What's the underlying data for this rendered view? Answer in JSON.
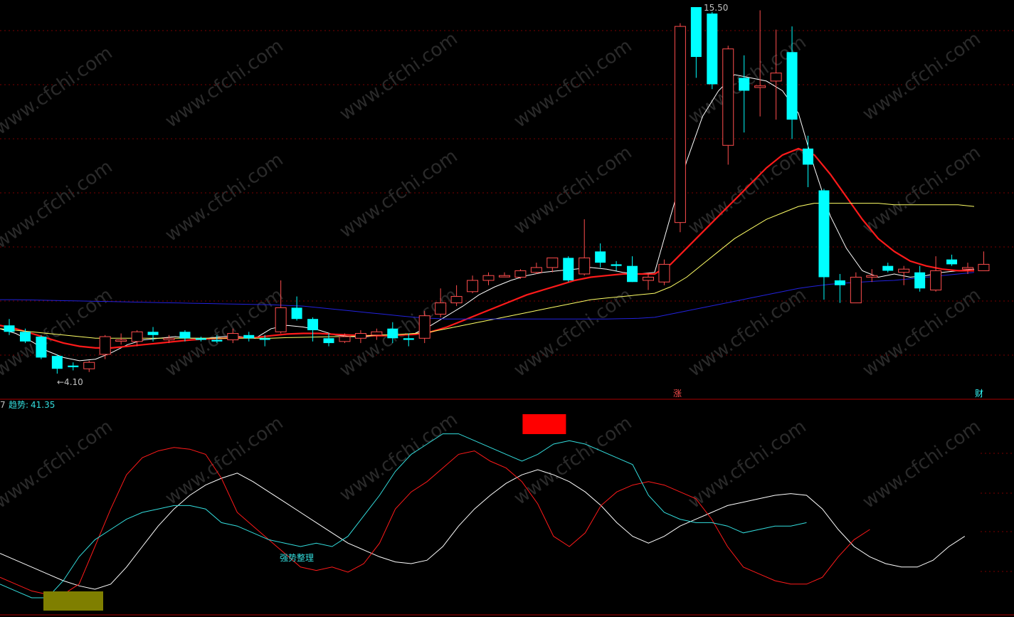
{
  "watermark": "www.cfchi.com",
  "main_panel": {
    "high_label": "15.50",
    "low_label": "←4.10",
    "markers": [
      {
        "text": "涨",
        "color": "#ff4d4d"
      },
      {
        "text": "财",
        "color": "#33ffff"
      }
    ]
  },
  "indicator_panel": {
    "title_prefix": "7",
    "title_label": "趋势:",
    "title_value": "41.35",
    "note": "强势整理"
  },
  "colors": {
    "up_candle": "#ff4d4d",
    "down_candle": "#00ffff",
    "ma_white": "#ffffff",
    "ma_red": "#ff1a1a",
    "ma_yellow": "#ffff66",
    "ma_blue": "#2222dd",
    "trend_cyan": "#33dddd",
    "grid": "#7a0000"
  },
  "chart_data": [
    {
      "type": "candlestick",
      "candles": [
        {
          "o": 5.6,
          "h": 5.8,
          "l": 5.3,
          "c": 5.4
        },
        {
          "o": 5.4,
          "h": 5.5,
          "l": 5.05,
          "c": 5.1
        },
        {
          "o": 5.25,
          "h": 5.3,
          "l": 4.55,
          "c": 4.6
        },
        {
          "o": 4.65,
          "h": 4.7,
          "l": 4.1,
          "c": 4.25
        },
        {
          "o": 4.35,
          "h": 4.45,
          "l": 4.2,
          "c": 4.3
        },
        {
          "o": 4.25,
          "h": 4.5,
          "l": 4.15,
          "c": 4.45
        },
        {
          "o": 4.7,
          "h": 5.3,
          "l": 4.55,
          "c": 5.25
        },
        {
          "o": 5.15,
          "h": 5.35,
          "l": 5.0,
          "c": 5.15
        },
        {
          "o": 5.1,
          "h": 5.45,
          "l": 4.95,
          "c": 5.4
        },
        {
          "o": 5.4,
          "h": 5.55,
          "l": 5.1,
          "c": 5.3
        },
        {
          "o": 5.15,
          "h": 5.3,
          "l": 5.05,
          "c": 5.2
        },
        {
          "o": 5.4,
          "h": 5.45,
          "l": 5.1,
          "c": 5.2
        },
        {
          "o": 5.2,
          "h": 5.25,
          "l": 5.1,
          "c": 5.15
        },
        {
          "o": 5.15,
          "h": 5.3,
          "l": 5.05,
          "c": 5.1
        },
        {
          "o": 5.15,
          "h": 5.5,
          "l": 5.05,
          "c": 5.35
        },
        {
          "o": 5.3,
          "h": 5.4,
          "l": 5.1,
          "c": 5.2
        },
        {
          "o": 5.2,
          "h": 5.3,
          "l": 4.95,
          "c": 5.15
        },
        {
          "o": 5.4,
          "h": 7.0,
          "l": 5.35,
          "c": 6.15
        },
        {
          "o": 6.15,
          "h": 6.5,
          "l": 5.75,
          "c": 5.8
        },
        {
          "o": 5.8,
          "h": 5.85,
          "l": 5.1,
          "c": 5.45
        },
        {
          "o": 5.2,
          "h": 5.35,
          "l": 4.95,
          "c": 5.05
        },
        {
          "o": 5.1,
          "h": 5.35,
          "l": 5.05,
          "c": 5.25
        },
        {
          "o": 5.2,
          "h": 5.45,
          "l": 5.05,
          "c": 5.35
        },
        {
          "o": 5.3,
          "h": 5.5,
          "l": 5.15,
          "c": 5.4
        },
        {
          "o": 5.5,
          "h": 5.7,
          "l": 5.05,
          "c": 5.2
        },
        {
          "o": 5.2,
          "h": 5.35,
          "l": 4.95,
          "c": 5.15
        },
        {
          "o": 5.2,
          "h": 6.05,
          "l": 5.05,
          "c": 5.9
        },
        {
          "o": 5.95,
          "h": 6.75,
          "l": 5.85,
          "c": 6.3
        },
        {
          "o": 6.3,
          "h": 6.85,
          "l": 6.2,
          "c": 6.5
        },
        {
          "o": 6.65,
          "h": 7.15,
          "l": 6.6,
          "c": 7.0
        },
        {
          "o": 7.0,
          "h": 7.25,
          "l": 6.85,
          "c": 7.15
        },
        {
          "o": 7.15,
          "h": 7.25,
          "l": 7.1,
          "c": 7.15
        },
        {
          "o": 7.1,
          "h": 7.35,
          "l": 7.05,
          "c": 7.3
        },
        {
          "o": 7.25,
          "h": 7.55,
          "l": 7.2,
          "c": 7.4
        },
        {
          "o": 7.4,
          "h": 7.65,
          "l": 7.25,
          "c": 7.7
        },
        {
          "o": 7.7,
          "h": 7.75,
          "l": 6.95,
          "c": 7.0
        },
        {
          "o": 7.2,
          "h": 8.9,
          "l": 7.15,
          "c": 7.7
        },
        {
          "o": 7.9,
          "h": 8.15,
          "l": 7.4,
          "c": 7.55
        },
        {
          "o": 7.5,
          "h": 7.6,
          "l": 7.3,
          "c": 7.45
        },
        {
          "o": 7.45,
          "h": 7.75,
          "l": 6.95,
          "c": 6.95
        },
        {
          "o": 7.0,
          "h": 7.25,
          "l": 6.7,
          "c": 7.1
        },
        {
          "o": 6.95,
          "h": 7.65,
          "l": 6.85,
          "c": 7.5
        },
        {
          "o": 8.8,
          "h": 15.0,
          "l": 8.5,
          "c": 14.9
        },
        {
          "o": 15.5,
          "h": 15.5,
          "l": 13.3,
          "c": 13.95
        },
        {
          "o": 15.3,
          "h": 15.35,
          "l": 12.95,
          "c": 13.1
        },
        {
          "o": 11.2,
          "h": 14.3,
          "l": 10.6,
          "c": 14.2
        },
        {
          "o": 13.3,
          "h": 14.0,
          "l": 11.6,
          "c": 12.9
        },
        {
          "o": 13.0,
          "h": 15.4,
          "l": 12.1,
          "c": 13.05
        },
        {
          "o": 13.2,
          "h": 14.8,
          "l": 12.0,
          "c": 13.45
        },
        {
          "o": 14.1,
          "h": 14.9,
          "l": 11.4,
          "c": 12.0
        },
        {
          "o": 11.1,
          "h": 11.5,
          "l": 9.9,
          "c": 10.6
        },
        {
          "o": 9.8,
          "h": 9.85,
          "l": 6.4,
          "c": 7.1
        },
        {
          "o": 7.0,
          "h": 7.2,
          "l": 6.3,
          "c": 6.85
        },
        {
          "o": 6.3,
          "h": 7.25,
          "l": 6.3,
          "c": 7.1
        },
        {
          "o": 7.1,
          "h": 7.35,
          "l": 6.95,
          "c": 7.15
        },
        {
          "o": 7.45,
          "h": 7.55,
          "l": 7.25,
          "c": 7.3
        },
        {
          "o": 7.25,
          "h": 7.45,
          "l": 6.85,
          "c": 7.35
        },
        {
          "o": 7.25,
          "h": 7.45,
          "l": 6.65,
          "c": 6.75
        },
        {
          "o": 6.7,
          "h": 7.75,
          "l": 6.65,
          "c": 7.3
        },
        {
          "o": 7.65,
          "h": 7.8,
          "l": 7.45,
          "c": 7.5
        },
        {
          "o": 7.35,
          "h": 7.55,
          "l": 7.2,
          "c": 7.4
        },
        {
          "o": 7.3,
          "h": 7.9,
          "l": 7.3,
          "c": 7.5
        }
      ],
      "moving_averages": [
        {
          "color": "#ffffff",
          "values": [
            5.5,
            5.35,
            5.1,
            4.8,
            4.6,
            4.5,
            4.55,
            4.75,
            5.0,
            5.15,
            5.2,
            5.25,
            5.2,
            5.2,
            5.25,
            5.25,
            5.2,
            5.5,
            5.6,
            5.55,
            5.45,
            5.3,
            5.25,
            5.25,
            5.3,
            5.3,
            5.35,
            5.6,
            5.9,
            6.2,
            6.55,
            6.8,
            7.0,
            7.15,
            7.25,
            7.3,
            7.35,
            7.4,
            7.35,
            7.25,
            7.2,
            7.25,
            9.0,
            10.7,
            12.1,
            12.9,
            13.4,
            13.3,
            13.2,
            12.9,
            12.2,
            10.5,
            9.0,
            8.0,
            7.3,
            7.1,
            7.2,
            7.1,
            7.15,
            7.25,
            7.3,
            7.35
          ]
        },
        {
          "color": "#ff1a1a",
          "values": [
            5.6,
            5.5,
            5.35,
            5.2,
            5.05,
            4.95,
            4.9,
            4.9,
            4.95,
            5.0,
            5.05,
            5.1,
            5.15,
            5.18,
            5.2,
            5.22,
            5.22,
            5.28,
            5.33,
            5.35,
            5.35,
            5.32,
            5.3,
            5.28,
            5.28,
            5.3,
            5.32,
            5.4,
            5.55,
            5.75,
            5.95,
            6.15,
            6.35,
            6.55,
            6.7,
            6.85,
            7.0,
            7.1,
            7.15,
            7.2,
            7.2,
            7.2,
            7.5,
            8.0,
            8.5,
            9.0,
            9.5,
            10.0,
            10.5,
            10.9,
            11.1,
            10.9,
            10.3,
            9.6,
            8.9,
            8.3,
            7.9,
            7.6,
            7.45,
            7.35,
            7.3,
            7.3
          ]
        },
        {
          "color": "#ffff66",
          "values": [
            5.5,
            5.45,
            5.4,
            5.35,
            5.3,
            5.25,
            5.2,
            5.2,
            5.2,
            5.2,
            5.2,
            5.2,
            5.2,
            5.2,
            5.2,
            5.2,
            5.2,
            5.2,
            5.22,
            5.23,
            5.24,
            5.25,
            5.26,
            5.28,
            5.3,
            5.32,
            5.35,
            5.4,
            5.5,
            5.6,
            5.7,
            5.8,
            5.9,
            6.0,
            6.1,
            6.2,
            6.3,
            6.4,
            6.45,
            6.5,
            6.55,
            6.6,
            6.8,
            7.1,
            7.5,
            7.9,
            8.3,
            8.6,
            8.9,
            9.1,
            9.3,
            9.4,
            9.4,
            9.4,
            9.4,
            9.4,
            9.35,
            9.35,
            9.35,
            9.35,
            9.35,
            9.3
          ]
        },
        {
          "color": "#2222dd",
          "values": [
            6.4,
            6.4,
            6.39,
            6.38,
            6.37,
            6.36,
            6.35,
            6.34,
            6.33,
            6.32,
            6.31,
            6.3,
            6.29,
            6.28,
            6.27,
            6.26,
            6.25,
            6.24,
            6.22,
            6.2,
            6.15,
            6.1,
            6.05,
            6.0,
            5.95,
            5.9,
            5.85,
            5.82,
            5.8,
            5.8,
            5.8,
            5.8,
            5.8,
            5.8,
            5.8,
            5.8,
            5.8,
            5.8,
            5.8,
            5.81,
            5.82,
            5.85,
            5.95,
            6.05,
            6.15,
            6.25,
            6.35,
            6.45,
            6.55,
            6.65,
            6.75,
            6.82,
            6.88,
            6.92,
            6.95,
            6.98,
            7.0,
            7.05,
            7.1,
            7.15,
            7.2,
            7.25
          ]
        }
      ]
    },
    {
      "type": "line",
      "series": [
        {
          "color": "#ffffff",
          "values": [
            26,
            22,
            18,
            14,
            10,
            7,
            5,
            8,
            18,
            30,
            42,
            52,
            60,
            66,
            70,
            73,
            68,
            62,
            56,
            50,
            44,
            38,
            32,
            28,
            24,
            21,
            20,
            22,
            30,
            42,
            52,
            60,
            67,
            72,
            75,
            72,
            68,
            62,
            54,
            44,
            36,
            32,
            36,
            42,
            46,
            50,
            54,
            56,
            58,
            60,
            61,
            60,
            52,
            40,
            30,
            24,
            20,
            18,
            18,
            22,
            30,
            36
          ]
        },
        {
          "color": "#ff1a1a",
          "values": [
            12,
            8,
            4,
            2,
            2,
            8,
            30,
            52,
            72,
            82,
            86,
            88,
            87,
            84,
            70,
            50,
            42,
            34,
            26,
            18,
            16,
            18,
            15,
            20,
            32,
            52,
            62,
            68,
            76,
            84,
            86,
            80,
            76,
            68,
            55,
            36,
            30,
            38,
            54,
            62,
            66,
            68,
            66,
            62,
            58,
            46,
            30,
            18,
            14,
            10,
            8,
            8,
            12,
            24,
            34,
            40
          ]
        },
        {
          "color": "#33dddd",
          "values": [
            8,
            4,
            0,
            0,
            10,
            24,
            34,
            40,
            46,
            50,
            52,
            54,
            54,
            52,
            44,
            42,
            38,
            34,
            32,
            30,
            32,
            30,
            36,
            48,
            60,
            74,
            84,
            90,
            96,
            96,
            92,
            88,
            84,
            80,
            84,
            90,
            92,
            90,
            86,
            82,
            78,
            60,
            50,
            46,
            44,
            44,
            42,
            38,
            40,
            42,
            42,
            44
          ]
        }
      ],
      "markers": [
        {
          "index": 32,
          "text": "",
          "color": "#ff0000"
        },
        {
          "index": 4,
          "text": "",
          "color": "#7f7f00"
        }
      ]
    }
  ]
}
